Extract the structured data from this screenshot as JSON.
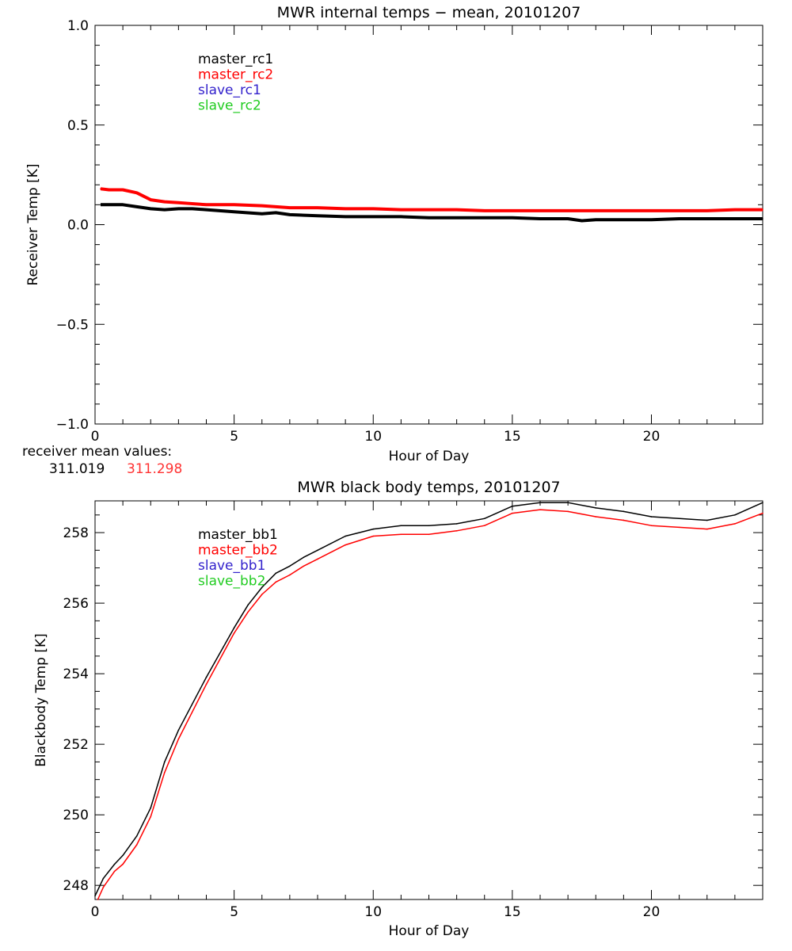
{
  "chart_data": [
    {
      "type": "line",
      "title": "MWR internal temps − mean, 20101207",
      "xlabel": "Hour of Day",
      "ylabel": "Receiver Temp [K]",
      "xlim": [
        0,
        24
      ],
      "ylim": [
        -1.0,
        1.0
      ],
      "xticks": [
        "0",
        "5",
        "10",
        "15",
        "20"
      ],
      "yticks": [
        "−1.0",
        "−0.5",
        "0.0",
        "0.5",
        "1.0"
      ],
      "grid": false,
      "legend_position": "top-left",
      "series": [
        {
          "name": "master_rc1",
          "color": "#000000",
          "x": [
            0.2,
            0.5,
            1,
            1.5,
            2,
            2.5,
            3,
            3.5,
            4,
            5,
            6,
            6.5,
            7,
            8,
            9,
            10,
            11,
            12,
            13,
            14,
            15,
            16,
            17,
            17.5,
            18,
            19,
            20,
            21,
            22,
            23,
            24
          ],
          "y": [
            0.1,
            0.1,
            0.1,
            0.09,
            0.08,
            0.075,
            0.08,
            0.08,
            0.075,
            0.065,
            0.055,
            0.06,
            0.05,
            0.045,
            0.04,
            0.04,
            0.04,
            0.035,
            0.035,
            0.035,
            0.035,
            0.03,
            0.03,
            0.02,
            0.025,
            0.025,
            0.025,
            0.03,
            0.03,
            0.03,
            0.03
          ]
        },
        {
          "name": "master_rc2",
          "color": "#ff0000",
          "x": [
            0.2,
            0.5,
            1,
            1.5,
            2,
            2.5,
            3,
            4,
            5,
            6,
            7,
            8,
            9,
            10,
            11,
            12,
            13,
            14,
            15,
            16,
            17,
            18,
            19,
            20,
            21,
            22,
            23,
            24
          ],
          "y": [
            0.18,
            0.175,
            0.175,
            0.16,
            0.125,
            0.115,
            0.11,
            0.1,
            0.1,
            0.095,
            0.085,
            0.085,
            0.08,
            0.08,
            0.075,
            0.075,
            0.075,
            0.07,
            0.07,
            0.07,
            0.07,
            0.07,
            0.07,
            0.07,
            0.07,
            0.07,
            0.075,
            0.075
          ]
        },
        {
          "name": "slave_rc1",
          "color": "#3322cc",
          "x": [],
          "y": []
        },
        {
          "name": "slave_rc2",
          "color": "#22cc22",
          "x": [],
          "y": []
        }
      ],
      "annotation": {
        "label": "receiver mean values:",
        "values": [
          {
            "text": "311.019",
            "color": "#000000"
          },
          {
            "text": "311.298",
            "color": "#ff3333"
          }
        ]
      }
    },
    {
      "type": "line",
      "title": "MWR black body temps, 20101207",
      "xlabel": "Hour of Day",
      "ylabel": "Blackbody Temp [K]",
      "xlim": [
        0,
        24
      ],
      "ylim": [
        247.6,
        258.9
      ],
      "xticks": [
        "0",
        "5",
        "10",
        "15",
        "20"
      ],
      "yticks": [
        "248",
        "250",
        "252",
        "254",
        "256",
        "258"
      ],
      "grid": false,
      "legend_position": "top-left",
      "series": [
        {
          "name": "master_bb1",
          "color": "#000000",
          "x": [
            0,
            0.3,
            0.7,
            1,
            1.5,
            2,
            2.5,
            3,
            4,
            5,
            5.5,
            6,
            6.5,
            7,
            7.5,
            8,
            9,
            10,
            11,
            12,
            13,
            14,
            15,
            16,
            17,
            18,
            19,
            20,
            21,
            22,
            23,
            24
          ],
          "y": [
            247.7,
            248.2,
            248.6,
            248.85,
            249.4,
            250.2,
            251.5,
            252.4,
            253.9,
            255.3,
            255.95,
            256.45,
            256.85,
            257.05,
            257.3,
            257.5,
            257.9,
            258.1,
            258.2,
            258.2,
            258.25,
            258.4,
            258.75,
            258.85,
            258.85,
            258.7,
            258.6,
            258.45,
            258.4,
            258.35,
            258.5,
            258.85
          ]
        },
        {
          "name": "master_bb2",
          "color": "#ff0000",
          "x": [
            0.1,
            0.3,
            0.7,
            1,
            1.5,
            2,
            2.5,
            3,
            4,
            5,
            5.5,
            6,
            6.5,
            7,
            7.5,
            8,
            9,
            10,
            11,
            12,
            13,
            14,
            15,
            16,
            17,
            18,
            19,
            20,
            21,
            22,
            23,
            24
          ],
          "y": [
            247.6,
            247.95,
            248.4,
            248.6,
            249.15,
            249.95,
            251.2,
            252.15,
            253.7,
            255.15,
            255.75,
            256.25,
            256.6,
            256.8,
            257.05,
            257.25,
            257.65,
            257.9,
            257.95,
            257.95,
            258.05,
            258.2,
            258.55,
            258.65,
            258.6,
            258.45,
            258.35,
            258.2,
            258.15,
            258.1,
            258.25,
            258.55
          ]
        },
        {
          "name": "slave_bb1",
          "color": "#3322cc",
          "x": [],
          "y": []
        },
        {
          "name": "slave_bb2",
          "color": "#22cc22",
          "x": [],
          "y": []
        }
      ]
    }
  ]
}
